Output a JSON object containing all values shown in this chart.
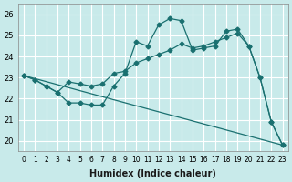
{
  "xlabel": "Humidex (Indice chaleur)",
  "ylabel": "",
  "bg_color": "#c8eaea",
  "grid_color": "#ffffff",
  "line_color": "#1a7070",
  "xlim": [
    -0.5,
    23.5
  ],
  "ylim": [
    19.5,
    26.5
  ],
  "xticks": [
    0,
    1,
    2,
    3,
    4,
    5,
    6,
    7,
    8,
    9,
    10,
    11,
    12,
    13,
    14,
    15,
    16,
    17,
    18,
    19,
    20,
    21,
    22,
    23
  ],
  "yticks": [
    20,
    21,
    22,
    23,
    24,
    25,
    26
  ],
  "line1_x": [
    0,
    1,
    2,
    3,
    4,
    5,
    6,
    7,
    8,
    9,
    10,
    11,
    12,
    13,
    14,
    15,
    16,
    17,
    18,
    19,
    20,
    21,
    22,
    23
  ],
  "line1_y": [
    23.1,
    22.9,
    22.6,
    22.3,
    21.8,
    21.8,
    21.7,
    21.7,
    22.6,
    23.2,
    24.7,
    24.5,
    25.5,
    25.8,
    25.7,
    24.3,
    24.4,
    24.5,
    25.2,
    25.3,
    24.5,
    23.0,
    20.9,
    19.8
  ],
  "line2_x": [
    0,
    1,
    2,
    3,
    4,
    5,
    6,
    7,
    8,
    9,
    10,
    11,
    12,
    13,
    14,
    15,
    16,
    17,
    18,
    19,
    20,
    21,
    22,
    23
  ],
  "line2_y": [
    23.1,
    22.9,
    22.6,
    22.3,
    22.8,
    22.7,
    22.6,
    22.7,
    23.2,
    23.3,
    23.7,
    23.9,
    24.1,
    24.3,
    24.6,
    24.4,
    24.5,
    24.7,
    24.9,
    25.1,
    24.5,
    23.0,
    20.9,
    19.8
  ],
  "line3_x": [
    0,
    23
  ],
  "line3_y": [
    23.1,
    19.8
  ]
}
